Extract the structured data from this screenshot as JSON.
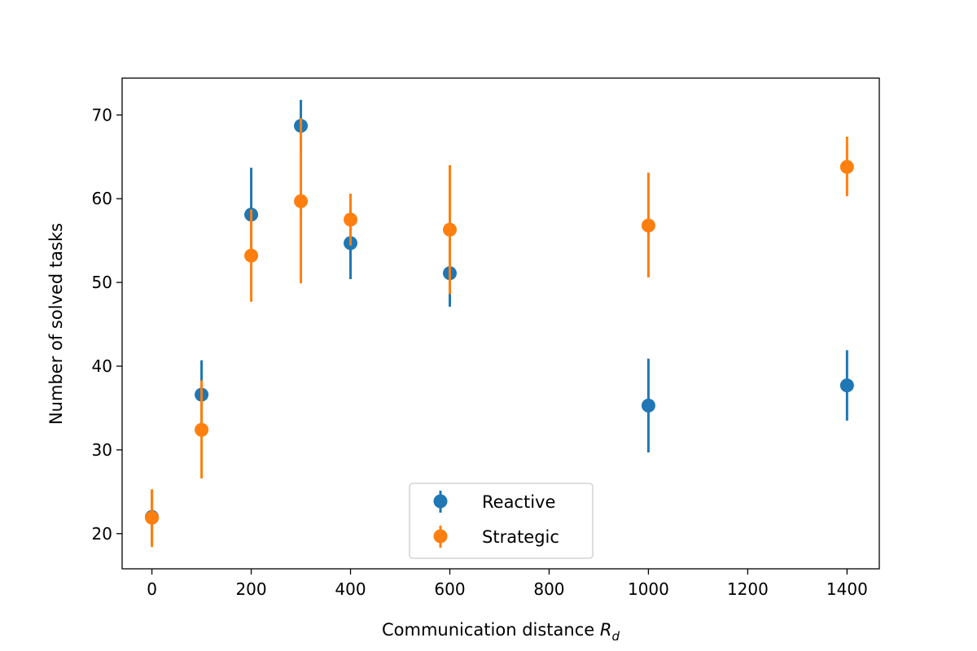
{
  "chart_data": {
    "type": "scatter",
    "title": "",
    "xlabel": "Communication distance",
    "xlabel_symbol": "R",
    "xlabel_subscript": "d",
    "ylabel": "Number of solved tasks",
    "xlim": [
      -60,
      1465
    ],
    "ylim": [
      15.8,
      74.4
    ],
    "xticks": [
      0,
      200,
      400,
      600,
      800,
      1000,
      1200,
      1400
    ],
    "yticks": [
      20,
      30,
      40,
      50,
      60,
      70
    ],
    "xtick_labels": [
      "0",
      "200",
      "400",
      "600",
      "800",
      "1000",
      "1200",
      "1400"
    ],
    "ytick_labels": [
      "20",
      "30",
      "40",
      "50",
      "60",
      "70"
    ],
    "grid": false,
    "legend_position": "lower-center",
    "error_bars": true,
    "series": [
      {
        "name": "Reactive",
        "color": "#1f77b4",
        "x": [
          0,
          100,
          200,
          300,
          400,
          600,
          1000,
          1400
        ],
        "y": [
          22.0,
          36.6,
          58.1,
          68.7,
          54.7,
          51.1,
          35.3,
          37.7
        ],
        "yerr_low": [
          18.9,
          32.7,
          52.5,
          65.6,
          50.4,
          47.1,
          29.7,
          33.5
        ],
        "yerr_high": [
          25.1,
          40.7,
          63.7,
          71.8,
          59.0,
          55.0,
          40.9,
          41.9
        ]
      },
      {
        "name": "Strategic",
        "color": "#ff7f0e",
        "x": [
          0,
          100,
          200,
          300,
          400,
          600,
          1000,
          1400
        ],
        "y": [
          21.9,
          32.4,
          53.2,
          59.7,
          57.5,
          56.3,
          56.8,
          63.8
        ],
        "yerr_low": [
          18.4,
          26.6,
          47.7,
          49.9,
          54.4,
          48.6,
          50.6,
          60.3
        ],
        "yerr_high": [
          25.3,
          38.3,
          58.7,
          69.6,
          60.6,
          64.0,
          63.1,
          67.4
        ]
      }
    ]
  }
}
